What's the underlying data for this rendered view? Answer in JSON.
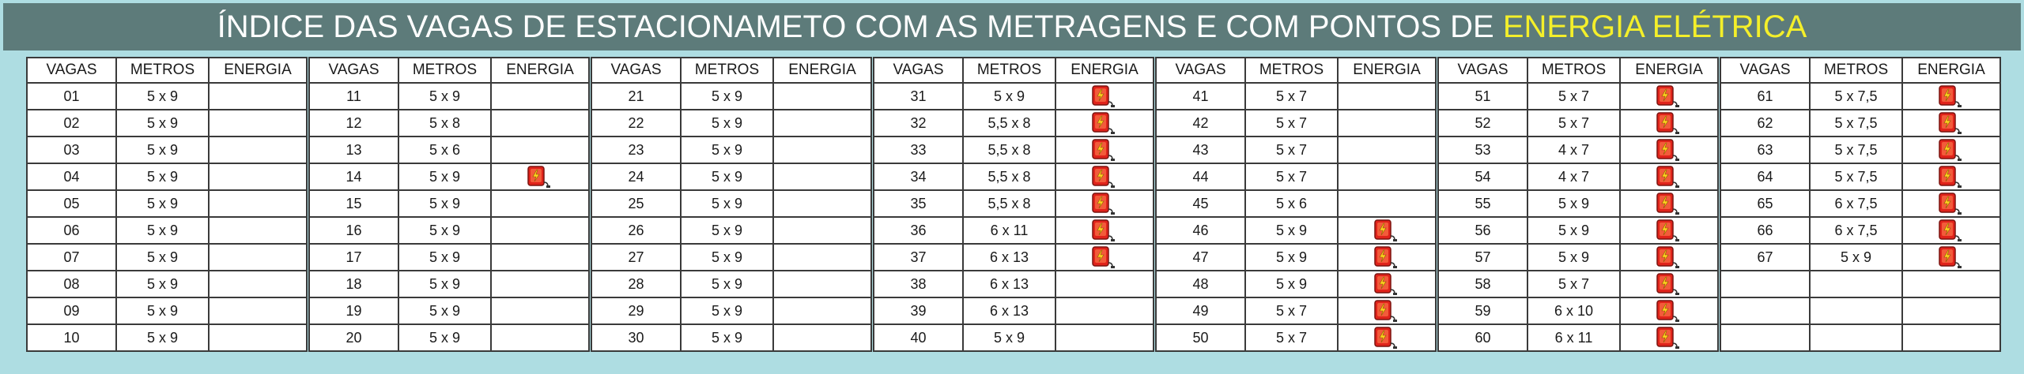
{
  "title": {
    "main": "ÍNDICE DAS VAGAS DE ESTACIONAMETO COM AS METRAGENS E COM PONTOS DE",
    "highlight": "ENERGIA ELÉTRICA"
  },
  "colors": {
    "banner_bg": "#5d7b7a",
    "highlight": "#f4ef2a",
    "page_bg": "#aedde2",
    "icon_red": "#e0231b",
    "icon_bolt": "#ffd21f"
  },
  "headers": {
    "vagas": "VAGAS",
    "metros": "METROS",
    "energia": "ENERGIA"
  },
  "energy_icon": "ev-charger-icon",
  "tables": [
    {
      "rows": [
        {
          "vaga": "01",
          "metros": "5 x 9",
          "energia": false
        },
        {
          "vaga": "02",
          "metros": "5 x 9",
          "energia": false
        },
        {
          "vaga": "03",
          "metros": "5 x 9",
          "energia": false
        },
        {
          "vaga": "04",
          "metros": "5 x 9",
          "energia": false
        },
        {
          "vaga": "05",
          "metros": "5 x 9",
          "energia": false
        },
        {
          "vaga": "06",
          "metros": "5 x 9",
          "energia": false
        },
        {
          "vaga": "07",
          "metros": "5 x 9",
          "energia": false
        },
        {
          "vaga": "08",
          "metros": "5 x 9",
          "energia": false
        },
        {
          "vaga": "09",
          "metros": "5 x 9",
          "energia": false
        },
        {
          "vaga": "10",
          "metros": "5 x 9",
          "energia": false
        }
      ]
    },
    {
      "rows": [
        {
          "vaga": "11",
          "metros": "5 x 9",
          "energia": false
        },
        {
          "vaga": "12",
          "metros": "5 x 8",
          "energia": false
        },
        {
          "vaga": "13",
          "metros": "5 x 6",
          "energia": false
        },
        {
          "vaga": "14",
          "metros": "5 x 9",
          "energia": true
        },
        {
          "vaga": "15",
          "metros": "5 x 9",
          "energia": false
        },
        {
          "vaga": "16",
          "metros": "5 x 9",
          "energia": false
        },
        {
          "vaga": "17",
          "metros": "5 x 9",
          "energia": false
        },
        {
          "vaga": "18",
          "metros": "5 x 9",
          "energia": false
        },
        {
          "vaga": "19",
          "metros": "5 x 9",
          "energia": false
        },
        {
          "vaga": "20",
          "metros": "5 x 9",
          "energia": false
        }
      ]
    },
    {
      "rows": [
        {
          "vaga": "21",
          "metros": "5 x 9",
          "energia": false
        },
        {
          "vaga": "22",
          "metros": "5 x 9",
          "energia": false
        },
        {
          "vaga": "23",
          "metros": "5 x 9",
          "energia": false
        },
        {
          "vaga": "24",
          "metros": "5 x 9",
          "energia": false
        },
        {
          "vaga": "25",
          "metros": "5 x 9",
          "energia": false
        },
        {
          "vaga": "26",
          "metros": "5 x 9",
          "energia": false
        },
        {
          "vaga": "27",
          "metros": "5 x 9",
          "energia": false
        },
        {
          "vaga": "28",
          "metros": "5 x 9",
          "energia": false
        },
        {
          "vaga": "29",
          "metros": "5 x 9",
          "energia": false
        },
        {
          "vaga": "30",
          "metros": "5 x 9",
          "energia": false
        }
      ]
    },
    {
      "rows": [
        {
          "vaga": "31",
          "metros": "5 x 9",
          "energia": true
        },
        {
          "vaga": "32",
          "metros": "5,5 x 8",
          "energia": true
        },
        {
          "vaga": "33",
          "metros": "5,5 x 8",
          "energia": true
        },
        {
          "vaga": "34",
          "metros": "5,5 x 8",
          "energia": true
        },
        {
          "vaga": "35",
          "metros": "5,5 x 8",
          "energia": true
        },
        {
          "vaga": "36",
          "metros": "6 x 11",
          "energia": true
        },
        {
          "vaga": "37",
          "metros": "6 x 13",
          "energia": true
        },
        {
          "vaga": "38",
          "metros": "6 x 13",
          "energia": false
        },
        {
          "vaga": "39",
          "metros": "6 x 13",
          "energia": false
        },
        {
          "vaga": "40",
          "metros": "5 x 9",
          "energia": false
        }
      ]
    },
    {
      "rows": [
        {
          "vaga": "41",
          "metros": "5 x 7",
          "energia": false
        },
        {
          "vaga": "42",
          "metros": "5 x 7",
          "energia": false
        },
        {
          "vaga": "43",
          "metros": "5 x 7",
          "energia": false
        },
        {
          "vaga": "44",
          "metros": "5 x 7",
          "energia": false
        },
        {
          "vaga": "45",
          "metros": "5 x 6",
          "energia": false
        },
        {
          "vaga": "46",
          "metros": "5 x 9",
          "energia": true
        },
        {
          "vaga": "47",
          "metros": "5 x 9",
          "energia": true
        },
        {
          "vaga": "48",
          "metros": "5 x 9",
          "energia": true
        },
        {
          "vaga": "49",
          "metros": "5 x 7",
          "energia": true
        },
        {
          "vaga": "50",
          "metros": "5 x 7",
          "energia": true
        }
      ]
    },
    {
      "rows": [
        {
          "vaga": "51",
          "metros": "5 x 7",
          "energia": true
        },
        {
          "vaga": "52",
          "metros": "5 x 7",
          "energia": true
        },
        {
          "vaga": "53",
          "metros": "4 x 7",
          "energia": true
        },
        {
          "vaga": "54",
          "metros": "4 x 7",
          "energia": true
        },
        {
          "vaga": "55",
          "metros": "5 x 9",
          "energia": true
        },
        {
          "vaga": "56",
          "metros": "5 x 9",
          "energia": true
        },
        {
          "vaga": "57",
          "metros": "5 x 9",
          "energia": true
        },
        {
          "vaga": "58",
          "metros": "5 x 7",
          "energia": true
        },
        {
          "vaga": "59",
          "metros": "6 x 10",
          "energia": true
        },
        {
          "vaga": "60",
          "metros": "6 x 11",
          "energia": true
        }
      ]
    },
    {
      "rows": [
        {
          "vaga": "61",
          "metros": "5 x 7,5",
          "energia": true
        },
        {
          "vaga": "62",
          "metros": "5 x 7,5",
          "energia": true
        },
        {
          "vaga": "63",
          "metros": "5 x 7,5",
          "energia": true
        },
        {
          "vaga": "64",
          "metros": "5 x 7,5",
          "energia": true
        },
        {
          "vaga": "65",
          "metros": "6 x 7,5",
          "energia": true
        },
        {
          "vaga": "66",
          "metros": "6 x 7,5",
          "energia": true
        },
        {
          "vaga": "67",
          "metros": "5 x 9",
          "energia": true
        },
        {
          "vaga": "",
          "metros": "",
          "energia": false
        },
        {
          "vaga": "",
          "metros": "",
          "energia": false
        },
        {
          "vaga": "",
          "metros": "",
          "energia": false
        }
      ]
    }
  ]
}
